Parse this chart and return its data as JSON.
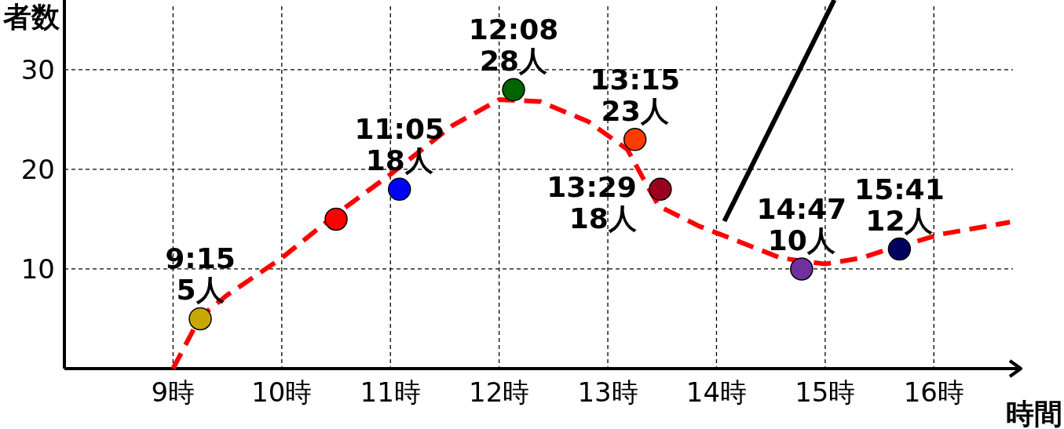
{
  "chart_data": {
    "type": "scatter",
    "ylabel": "者数",
    "xlabel": "時間",
    "xlim": [
      8,
      16.8
    ],
    "ylim": [
      0,
      37
    ],
    "xticks": [
      {
        "value": 9,
        "label": "9時"
      },
      {
        "value": 10,
        "label": "10時"
      },
      {
        "value": 11,
        "label": "11時"
      },
      {
        "value": 12,
        "label": "12時"
      },
      {
        "value": 13,
        "label": "13時"
      },
      {
        "value": 14,
        "label": "14時"
      },
      {
        "value": 15,
        "label": "15時"
      },
      {
        "value": 16,
        "label": "16時"
      }
    ],
    "yticks": [
      10,
      20,
      30
    ],
    "grid": true,
    "series": [
      {
        "type": "line",
        "color": "#ff0000",
        "line_style": "dashed",
        "marker": "none",
        "x": [
          9.0,
          9.25,
          9.5,
          10.0,
          10.5,
          11.0,
          11.57,
          12.0,
          12.38,
          12.82,
          13.18,
          13.33,
          13.47,
          13.84,
          14.22,
          14.59,
          15.0,
          15.33,
          15.5,
          16.07,
          16.7
        ],
        "values": [
          0,
          5.2,
          7.4,
          11.1,
          15.5,
          19.5,
          24.4,
          27,
          26.8,
          24.8,
          22,
          19,
          16.3,
          14.3,
          12.7,
          11.1,
          10.5,
          11.1,
          11.7,
          13.5,
          14.7
        ]
      },
      {
        "marker": "circle",
        "x": [
          9.25,
          10.5,
          11.083,
          12.133,
          13.25,
          13.483,
          14.783,
          15.683
        ],
        "values": [
          5,
          15,
          18,
          28,
          23,
          18,
          10,
          12
        ],
        "colors": [
          "#c8a800",
          "#ff0000",
          "#0000ff",
          "#006400",
          "#ff3b00",
          "#9b0020",
          "#7030a0",
          "#000060"
        ]
      }
    ],
    "annotations": [
      {
        "text": "9:15\n5人",
        "x": 9.25,
        "y": 5
      },
      {
        "text": "11:05\n18人",
        "x": 11.083,
        "y": 18
      },
      {
        "text": "12:08\n28人",
        "x": 12.133,
        "y": 28
      },
      {
        "text": "13:15\n23人",
        "x": 13.25,
        "y": 23
      },
      {
        "text": "13:29\n18人",
        "x": 13.483,
        "y": 18
      },
      {
        "text": "14:47\n10人",
        "x": 14.783,
        "y": 10
      },
      {
        "text": "15:41\n12人",
        "x": 15.683,
        "y": 12
      }
    ]
  }
}
